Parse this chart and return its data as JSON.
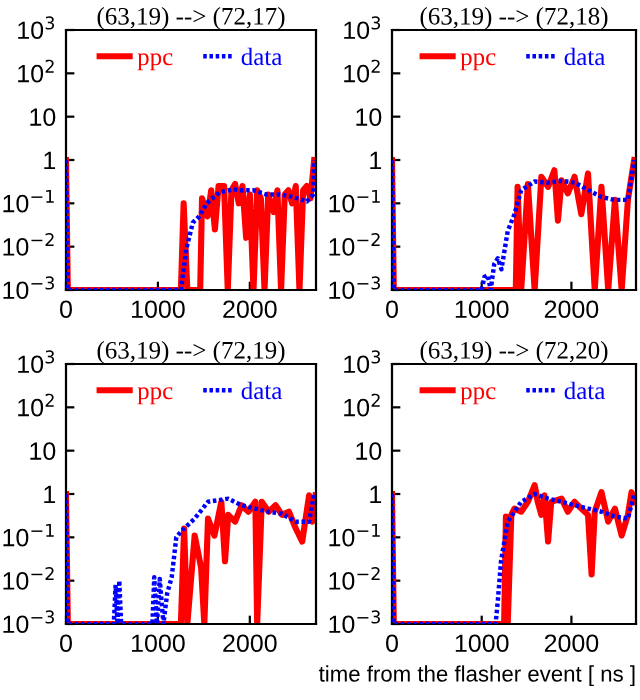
{
  "chart_data": [
    {
      "type": "line",
      "title": "(63,19) --> (72,17)",
      "log": "y",
      "xlim": [
        0,
        2720
      ],
      "xticks": [
        0,
        1000,
        2000
      ],
      "ylim": [
        0.001,
        1000
      ],
      "yticks": [
        {
          "value": 1000,
          "label": "10$^{3}$"
        },
        {
          "value": 100,
          "label": "10$^{2}$"
        },
        10,
        1,
        {
          "value": 0.1,
          "label": "10$^{−1}$"
        },
        {
          "value": 0.01,
          "label": "10$^{−2}$"
        },
        {
          "value": 0.001,
          "label": "10$^{−3}$"
        }
      ],
      "legend": "top",
      "grid": false,
      "series": [
        {
          "name": "ppc",
          "color": "#ff0000",
          "line_style": "solid",
          "x": [
            0,
            20,
            1250,
            1280,
            1320,
            1460,
            1480,
            1540,
            1580,
            1620,
            1660,
            1720,
            1760,
            1800,
            1840,
            1880,
            1920,
            1960,
            2000,
            2040,
            2080,
            2120,
            2160,
            2200,
            2260,
            2300,
            2340,
            2380,
            2420,
            2460,
            2500,
            2540,
            2580,
            2620,
            2660,
            2700
          ],
          "values": [
            1,
            0.001,
            0.001,
            0.1,
            0.001,
            0.001,
            0.13,
            0.05,
            0.2,
            0.025,
            0.25,
            0.25,
            0.001,
            0.2,
            0.28,
            0.1,
            0.25,
            0.016,
            0.16,
            0.001,
            0.2,
            0.13,
            0.001,
            0.16,
            0.063,
            0.2,
            0.001,
            0.16,
            0.2,
            0.1,
            0.25,
            0.001,
            0.2,
            0.25,
            0.13,
            1
          ]
        },
        {
          "name": "data",
          "color": "#0000ff",
          "line_style": "dotted",
          "x": [
            0,
            20,
            1200,
            1250,
            1310,
            1380,
            1450,
            1530,
            1670,
            1820,
            1900,
            2040,
            2180,
            2330,
            2470,
            2620,
            2690,
            2700
          ],
          "values": [
            1,
            0.001,
            0.001,
            0.001,
            0.009,
            0.036,
            0.05,
            0.1,
            0.18,
            0.21,
            0.2,
            0.2,
            0.16,
            0.16,
            0.14,
            0.11,
            0.16,
            1
          ]
        }
      ]
    },
    {
      "type": "line",
      "title": "(63,19) --> (72,18)",
      "log": "y",
      "xlim": [
        0,
        2720
      ],
      "xticks": [
        0,
        1000,
        2000
      ],
      "ylim": [
        0.001,
        1000
      ],
      "yticks": [
        {
          "value": 1000,
          "label": "10$^{3}$"
        },
        {
          "value": 100,
          "label": "10$^{2}$"
        },
        10,
        1,
        {
          "value": 0.1,
          "label": "10$^{−1}$"
        },
        {
          "value": 0.01,
          "label": "10$^{−2}$"
        },
        {
          "value": 0.001,
          "label": "10$^{−3}$"
        }
      ],
      "legend": "top",
      "grid": false,
      "series": [
        {
          "name": "ppc",
          "color": "#ff0000",
          "line_style": "solid",
          "x": [
            0,
            20,
            1380,
            1400,
            1440,
            1515,
            1590,
            1665,
            1740,
            1810,
            1850,
            1890,
            1960,
            2035,
            2110,
            2185,
            2260,
            2335,
            2410,
            2485,
            2560,
            2630,
            2670,
            2700
          ],
          "values": [
            1,
            0.001,
            0.001,
            0.24,
            0.001,
            0.28,
            0.001,
            0.41,
            0.24,
            0.58,
            0.04,
            0.34,
            0.17,
            0.41,
            0.056,
            0.49,
            0.001,
            0.24,
            0.001,
            0.12,
            0.001,
            0.12,
            0.41,
            1
          ]
        },
        {
          "name": "data",
          "color": "#0000ff",
          "line_style": "dotted",
          "x": [
            0,
            20,
            1000,
            1030,
            1067,
            1100,
            1140,
            1180,
            1220,
            1290,
            1365,
            1440,
            1590,
            1740,
            1890,
            2040,
            2190,
            2335,
            2480,
            2630,
            2700
          ],
          "values": [
            1,
            0.001,
            0.001,
            0.002,
            0.0022,
            0.001,
            0.004,
            0.0054,
            0.003,
            0.023,
            0.056,
            0.2,
            0.32,
            0.3,
            0.33,
            0.3,
            0.2,
            0.14,
            0.12,
            0.12,
            1
          ]
        }
      ]
    },
    {
      "type": "line",
      "title": "(63,19) --> (72,19)",
      "log": "y",
      "xlim": [
        0,
        2720
      ],
      "xticks": [
        0,
        1000,
        2000
      ],
      "ylim": [
        0.001,
        1000
      ],
      "yticks": [
        {
          "value": 1000,
          "label": "10$^{3}$"
        },
        {
          "value": 100,
          "label": "10$^{2}$"
        },
        10,
        1,
        {
          "value": 0.1,
          "label": "10$^{−1}$"
        },
        {
          "value": 0.01,
          "label": "10$^{−2}$"
        },
        {
          "value": 0.001,
          "label": "10$^{−3}$"
        }
      ],
      "legend": "top",
      "grid": false,
      "series": [
        {
          "name": "ppc",
          "color": "#ff0000",
          "line_style": "solid",
          "x": [
            0,
            20,
            1250,
            1285,
            1320,
            1400,
            1470,
            1505,
            1545,
            1615,
            1690,
            1730,
            1765,
            1840,
            1910,
            1985,
            2060,
            2080,
            2130,
            2205,
            2280,
            2350,
            2425,
            2500,
            2570,
            2645,
            2680,
            2715
          ],
          "values": [
            1,
            0.001,
            0.001,
            0.16,
            0.001,
            0.11,
            0.02,
            0.001,
            0.27,
            0.11,
            0.66,
            0.028,
            0.33,
            0.23,
            0.55,
            0.39,
            0.66,
            0.001,
            0.66,
            0.39,
            0.55,
            0.33,
            0.39,
            0.16,
            0.08,
            0.93,
            0.23,
            0.93
          ]
        },
        {
          "name": "data",
          "color": "#0000ff",
          "line_style": "dotted",
          "x": [
            0,
            20,
            520,
            540,
            560,
            580,
            600,
            940,
            960,
            990,
            1020,
            1060,
            1100,
            1150,
            1200,
            1250,
            1400,
            1545,
            1765,
            1910,
            2060,
            2205,
            2350,
            2500,
            2645,
            2700
          ],
          "values": [
            1,
            0.001,
            0.001,
            0.008,
            0.001,
            0.01,
            0.001,
            0.001,
            0.012,
            0.001,
            0.011,
            0.001,
            0.005,
            0.012,
            0.1,
            0.135,
            0.27,
            0.66,
            0.78,
            0.55,
            0.46,
            0.39,
            0.35,
            0.23,
            0.23,
            1
          ]
        }
      ]
    },
    {
      "type": "line",
      "title": "(63,19) --> (72,20)",
      "xlabel": "time from the flasher event [ ns ]",
      "log": "y",
      "xlim": [
        0,
        2720
      ],
      "xticks": [
        0,
        1000,
        2000
      ],
      "ylim": [
        0.001,
        1000
      ],
      "yticks": [
        {
          "value": 1000,
          "label": "10$^{3}$"
        },
        {
          "value": 100,
          "label": "10$^{2}$"
        },
        10,
        1,
        {
          "value": 0.1,
          "label": "10$^{−1}$"
        },
        {
          "value": 0.01,
          "label": "10$^{−2}$"
        },
        {
          "value": 0.001,
          "label": "10$^{−3}$"
        }
      ],
      "legend": "top",
      "grid": false,
      "series": [
        {
          "name": "ppc",
          "color": "#ff0000",
          "line_style": "solid",
          "x": [
            0,
            20,
            1250,
            1270,
            1290,
            1330,
            1365,
            1440,
            1515,
            1590,
            1625,
            1665,
            1700,
            1740,
            1775,
            1890,
            1960,
            2035,
            2110,
            2185,
            2225,
            2260,
            2335,
            2410,
            2485,
            2560,
            2630,
            2670,
            2710
          ],
          "values": [
            1,
            0.001,
            0.001,
            0.3,
            0.001,
            0.33,
            0.46,
            0.39,
            0.66,
            1.6,
            0.66,
            0.33,
            0.93,
            0.08,
            0.66,
            0.78,
            0.39,
            0.66,
            0.46,
            0.33,
            0.014,
            0.39,
            1.1,
            0.23,
            0.46,
            0.11,
            0.33,
            1.1,
            0.66
          ]
        },
        {
          "name": "data",
          "color": "#0000ff",
          "line_style": "dotted",
          "x": [
            0,
            20,
            1155,
            1180,
            1215,
            1290,
            1440,
            1590,
            1740,
            1890,
            2035,
            2185,
            2335,
            2485,
            2630,
            2700
          ],
          "values": [
            1,
            0.001,
            0.001,
            0.0035,
            0.028,
            0.23,
            0.66,
            1,
            0.78,
            0.66,
            0.55,
            0.46,
            0.39,
            0.3,
            0.27,
            1
          ]
        }
      ]
    }
  ]
}
